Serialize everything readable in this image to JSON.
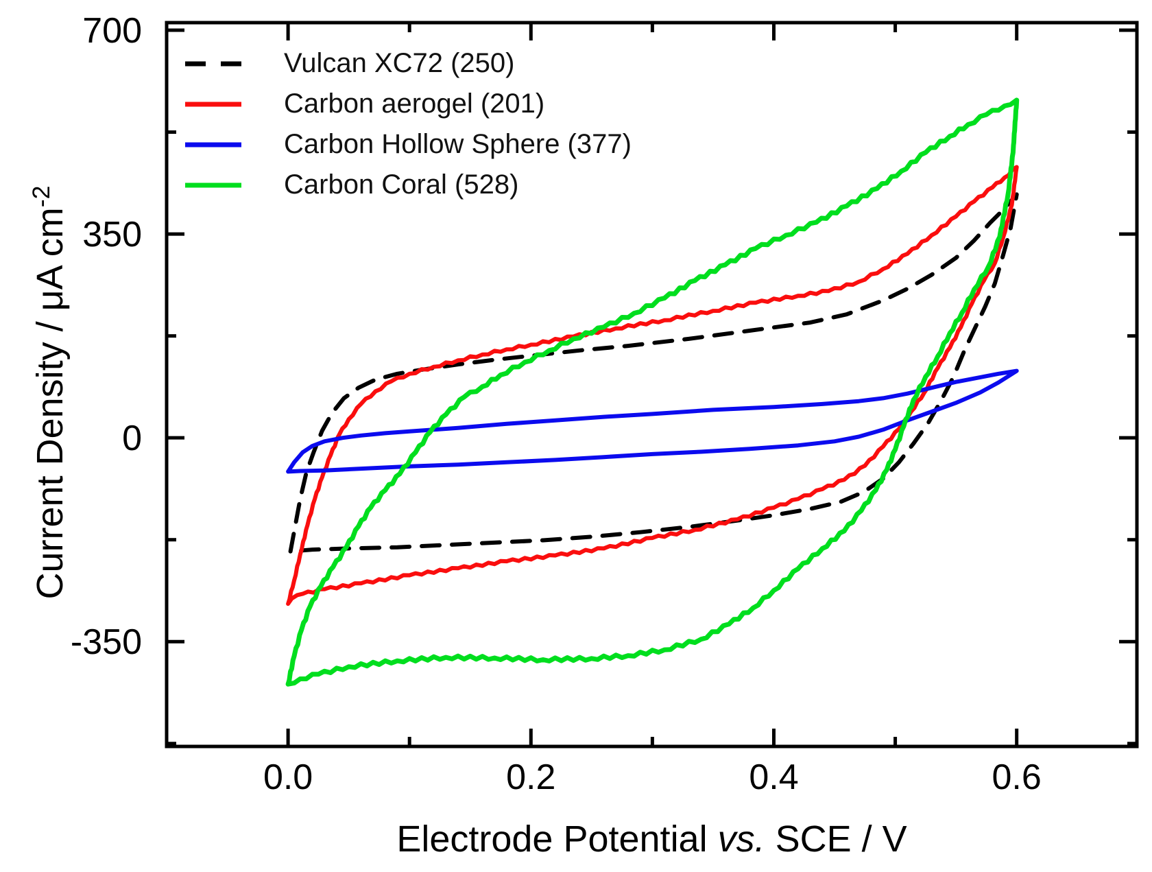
{
  "chart_data": {
    "type": "line",
    "subtype": "cyclic-voltammogram",
    "title": "",
    "xlabel_pre": "Electrode Potential ",
    "xlabel_italic": "vs.",
    "xlabel_post": " SCE / V",
    "ylabel_main": "Current Density / μA cm",
    "ylabel_sup": "-2",
    "xlim": [
      -0.1,
      0.699
    ],
    "ylim": [
      -530,
      713
    ],
    "grid": false,
    "legend_position": "top-left",
    "x_major_ticks": [
      0.0,
      0.2,
      0.4,
      0.6
    ],
    "x_tick_labels": [
      "0.0",
      "0.2",
      "0.4",
      "0.6"
    ],
    "x_minor_ticks": [
      -0.1,
      0.1,
      0.3,
      0.5,
      0.7
    ],
    "y_major_ticks": [
      700,
      350,
      0,
      -350
    ],
    "y_tick_labels": [
      "700",
      "350",
      "0",
      "-350"
    ],
    "y_minor_ticks": [
      525,
      175,
      -175,
      -525
    ],
    "series": [
      {
        "name": "Vulcan XC72 (250)",
        "color": "#000000",
        "dash": true,
        "width": 6,
        "wiggle": 0,
        "points": [
          [
            0.002,
            -195
          ],
          [
            0.006,
            -150
          ],
          [
            0.01,
            -105
          ],
          [
            0.015,
            -60
          ],
          [
            0.021,
            -25
          ],
          [
            0.028,
            12
          ],
          [
            0.036,
            42
          ],
          [
            0.046,
            68
          ],
          [
            0.058,
            86
          ],
          [
            0.072,
            100
          ],
          [
            0.09,
            110
          ],
          [
            0.11,
            117
          ],
          [
            0.14,
            126
          ],
          [
            0.17,
            134
          ],
          [
            0.2,
            141
          ],
          [
            0.24,
            150
          ],
          [
            0.28,
            158
          ],
          [
            0.33,
            170
          ],
          [
            0.38,
            184
          ],
          [
            0.43,
            198
          ],
          [
            0.46,
            212
          ],
          [
            0.49,
            236
          ],
          [
            0.51,
            256
          ],
          [
            0.53,
            280
          ],
          [
            0.55,
            309
          ],
          [
            0.565,
            339
          ],
          [
            0.578,
            369
          ],
          [
            0.59,
            394
          ],
          [
            0.6,
            418
          ],
          [
            0.595,
            360
          ],
          [
            0.589,
            315
          ],
          [
            0.582,
            265
          ],
          [
            0.574,
            225
          ],
          [
            0.566,
            190
          ],
          [
            0.557,
            150
          ],
          [
            0.548,
            105
          ],
          [
            0.538,
            65
          ],
          [
            0.527,
            25
          ],
          [
            0.515,
            -10
          ],
          [
            0.503,
            -42
          ],
          [
            0.49,
            -70
          ],
          [
            0.474,
            -93
          ],
          [
            0.455,
            -110
          ],
          [
            0.43,
            -122
          ],
          [
            0.4,
            -133
          ],
          [
            0.37,
            -142
          ],
          [
            0.33,
            -153
          ],
          [
            0.29,
            -162
          ],
          [
            0.25,
            -170
          ],
          [
            0.21,
            -176
          ],
          [
            0.17,
            -180
          ],
          [
            0.13,
            -184
          ],
          [
            0.09,
            -188
          ],
          [
            0.05,
            -190
          ],
          [
            0.02,
            -192
          ],
          [
            0.002,
            -195
          ]
        ]
      },
      {
        "name": "Carbon aerogel (201)",
        "color": "#fa0e0e",
        "dash": false,
        "width": 6,
        "wiggle": 1.6,
        "points": [
          [
            0.0,
            -285
          ],
          [
            0.005,
            -245
          ],
          [
            0.01,
            -200
          ],
          [
            0.016,
            -150
          ],
          [
            0.022,
            -105
          ],
          [
            0.028,
            -68
          ],
          [
            0.035,
            -30
          ],
          [
            0.042,
            5
          ],
          [
            0.05,
            32
          ],
          [
            0.06,
            58
          ],
          [
            0.072,
            80
          ],
          [
            0.085,
            97
          ],
          [
            0.1,
            110
          ],
          [
            0.12,
            122
          ],
          [
            0.14,
            133
          ],
          [
            0.16,
            143
          ],
          [
            0.18,
            152
          ],
          [
            0.2,
            160
          ],
          [
            0.235,
            174
          ],
          [
            0.27,
            188
          ],
          [
            0.31,
            202
          ],
          [
            0.35,
            218
          ],
          [
            0.385,
            232
          ],
          [
            0.42,
            244
          ],
          [
            0.445,
            252
          ],
          [
            0.47,
            268
          ],
          [
            0.49,
            290
          ],
          [
            0.51,
            316
          ],
          [
            0.53,
            348
          ],
          [
            0.55,
            380
          ],
          [
            0.565,
            406
          ],
          [
            0.58,
            430
          ],
          [
            0.59,
            447
          ],
          [
            0.6,
            465
          ],
          [
            0.596,
            400
          ],
          [
            0.589,
            345
          ],
          [
            0.582,
            300
          ],
          [
            0.573,
            270
          ],
          [
            0.563,
            230
          ],
          [
            0.554,
            190
          ],
          [
            0.545,
            155
          ],
          [
            0.535,
            120
          ],
          [
            0.524,
            78
          ],
          [
            0.513,
            45
          ],
          [
            0.503,
            15
          ],
          [
            0.49,
            -15
          ],
          [
            0.475,
            -48
          ],
          [
            0.458,
            -72
          ],
          [
            0.44,
            -88
          ],
          [
            0.42,
            -105
          ],
          [
            0.4,
            -120
          ],
          [
            0.37,
            -140
          ],
          [
            0.335,
            -158
          ],
          [
            0.3,
            -172
          ],
          [
            0.26,
            -190
          ],
          [
            0.22,
            -202
          ],
          [
            0.18,
            -212
          ],
          [
            0.14,
            -224
          ],
          [
            0.1,
            -236
          ],
          [
            0.06,
            -250
          ],
          [
            0.03,
            -260
          ],
          [
            0.012,
            -268
          ],
          [
            0.003,
            -276
          ],
          [
            0.0,
            -285
          ]
        ]
      },
      {
        "name": "Carbon Hollow Sphere (377)",
        "color": "#0b0bee",
        "dash": false,
        "width": 6,
        "wiggle": 0,
        "points": [
          [
            0.0,
            -58
          ],
          [
            0.005,
            -42
          ],
          [
            0.012,
            -25
          ],
          [
            0.02,
            -14
          ],
          [
            0.03,
            -6
          ],
          [
            0.045,
            0
          ],
          [
            0.06,
            4
          ],
          [
            0.08,
            8
          ],
          [
            0.1,
            11
          ],
          [
            0.14,
            17
          ],
          [
            0.18,
            24
          ],
          [
            0.22,
            30
          ],
          [
            0.26,
            36
          ],
          [
            0.3,
            41
          ],
          [
            0.35,
            48
          ],
          [
            0.4,
            53
          ],
          [
            0.44,
            58
          ],
          [
            0.47,
            63
          ],
          [
            0.49,
            68
          ],
          [
            0.51,
            76
          ],
          [
            0.53,
            86
          ],
          [
            0.55,
            96
          ],
          [
            0.57,
            104
          ],
          [
            0.585,
            110
          ],
          [
            0.6,
            115
          ],
          [
            0.585,
            95
          ],
          [
            0.57,
            78
          ],
          [
            0.55,
            60
          ],
          [
            0.53,
            45
          ],
          [
            0.51,
            30
          ],
          [
            0.49,
            14
          ],
          [
            0.47,
            2
          ],
          [
            0.45,
            -6
          ],
          [
            0.42,
            -13
          ],
          [
            0.38,
            -19
          ],
          [
            0.34,
            -24
          ],
          [
            0.3,
            -28
          ],
          [
            0.26,
            -33
          ],
          [
            0.22,
            -38
          ],
          [
            0.18,
            -42
          ],
          [
            0.14,
            -46
          ],
          [
            0.1,
            -49
          ],
          [
            0.06,
            -53
          ],
          [
            0.03,
            -56
          ],
          [
            0.01,
            -57
          ],
          [
            0.0,
            -58
          ]
        ]
      },
      {
        "name": "Carbon Coral (528)",
        "color": "#00de1e",
        "dash": false,
        "width": 7,
        "wiggle": 2.2,
        "points": [
          [
            0.0,
            -423
          ],
          [
            0.005,
            -375
          ],
          [
            0.011,
            -330
          ],
          [
            0.018,
            -290
          ],
          [
            0.027,
            -255
          ],
          [
            0.037,
            -222
          ],
          [
            0.048,
            -188
          ],
          [
            0.058,
            -152
          ],
          [
            0.068,
            -120
          ],
          [
            0.08,
            -90
          ],
          [
            0.092,
            -62
          ],
          [
            0.105,
            -25
          ],
          [
            0.117,
            10
          ],
          [
            0.13,
            40
          ],
          [
            0.145,
            70
          ],
          [
            0.16,
            88
          ],
          [
            0.175,
            108
          ],
          [
            0.195,
            130
          ],
          [
            0.215,
            150
          ],
          [
            0.235,
            170
          ],
          [
            0.26,
            190
          ],
          [
            0.285,
            214
          ],
          [
            0.31,
            240
          ],
          [
            0.335,
            270
          ],
          [
            0.36,
            297
          ],
          [
            0.385,
            325
          ],
          [
            0.41,
            348
          ],
          [
            0.435,
            370
          ],
          [
            0.46,
            398
          ],
          [
            0.485,
            428
          ],
          [
            0.505,
            458
          ],
          [
            0.525,
            490
          ],
          [
            0.545,
            518
          ],
          [
            0.56,
            538
          ],
          [
            0.575,
            555
          ],
          [
            0.59,
            570
          ],
          [
            0.6,
            580
          ],
          [
            0.597,
            490
          ],
          [
            0.593,
            420
          ],
          [
            0.586,
            345
          ],
          [
            0.577,
            295
          ],
          [
            0.565,
            255
          ],
          [
            0.555,
            215
          ],
          [
            0.545,
            180
          ],
          [
            0.535,
            140
          ],
          [
            0.525,
            105
          ],
          [
            0.515,
            65
          ],
          [
            0.507,
            20
          ],
          [
            0.5,
            -20
          ],
          [
            0.493,
            -55
          ],
          [
            0.484,
            -90
          ],
          [
            0.472,
            -125
          ],
          [
            0.458,
            -160
          ],
          [
            0.44,
            -190
          ],
          [
            0.42,
            -225
          ],
          [
            0.4,
            -262
          ],
          [
            0.383,
            -292
          ],
          [
            0.363,
            -320
          ],
          [
            0.34,
            -346
          ],
          [
            0.31,
            -364
          ],
          [
            0.28,
            -374
          ],
          [
            0.25,
            -379
          ],
          [
            0.21,
            -381
          ],
          [
            0.17,
            -378
          ],
          [
            0.13,
            -377
          ],
          [
            0.09,
            -383
          ],
          [
            0.05,
            -393
          ],
          [
            0.025,
            -406
          ],
          [
            0.01,
            -414
          ],
          [
            0.0,
            -423
          ]
        ]
      }
    ],
    "frame_color": "#000000"
  }
}
